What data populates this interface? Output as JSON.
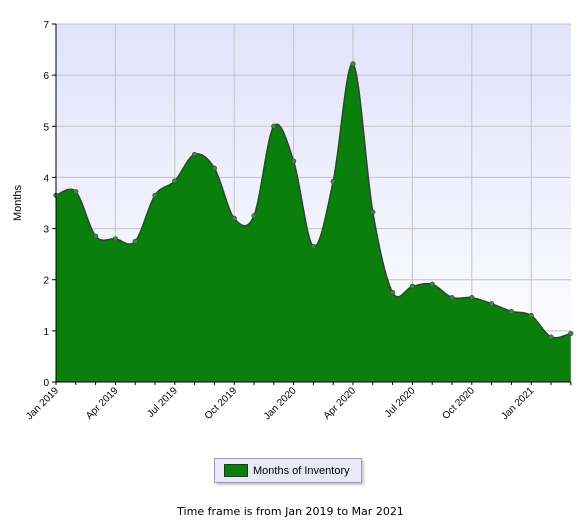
{
  "chart_data": {
    "type": "area",
    "title": "",
    "ylabel": "Months",
    "xlabel": "",
    "ylim": [
      0,
      7
    ],
    "yticks": [
      "0",
      "1",
      "2",
      "3",
      "4",
      "5",
      "6",
      "7"
    ],
    "xtick_labels": [
      "Jan 2019",
      "Apr 2019",
      "Jul 2019",
      "Oct 2019",
      "Jan 2020",
      "Apr 2020",
      "Jul 2020",
      "Oct 2020",
      "Jan 2021"
    ],
    "x": [
      "Jan 2019",
      "Feb 2019",
      "Mar 2019",
      "Apr 2019",
      "May 2019",
      "Jun 2019",
      "Jul 2019",
      "Aug 2019",
      "Sep 2019",
      "Oct 2019",
      "Nov 2019",
      "Dec 2019",
      "Jan 2020",
      "Feb 2020",
      "Mar 2020",
      "Apr 2020",
      "May 2020",
      "Jun 2020",
      "Jul 2020",
      "Aug 2020",
      "Sep 2020",
      "Oct 2020",
      "Nov 2020",
      "Dec 2020",
      "Jan 2021",
      "Feb 2021",
      "Mar 2021"
    ],
    "series": [
      {
        "name": "Months of Inventory",
        "color": "#0b7f0b",
        "values": [
          3.65,
          3.72,
          2.85,
          2.8,
          2.75,
          3.65,
          3.93,
          4.45,
          4.18,
          3.2,
          3.25,
          5.0,
          4.32,
          2.65,
          3.92,
          6.22,
          3.32,
          1.75,
          1.87,
          1.91,
          1.65,
          1.65,
          1.53,
          1.38,
          1.3,
          0.88,
          0.95
        ]
      }
    ],
    "grid": true,
    "legend": "bottom",
    "footnote": "Time frame is from Jan 2019 to Mar 2021"
  }
}
